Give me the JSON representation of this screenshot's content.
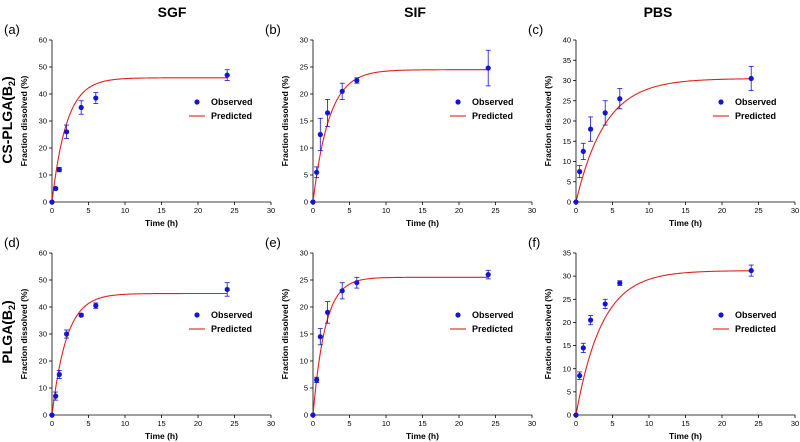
{
  "column_titles": [
    "SGF",
    "SIF",
    "PBS"
  ],
  "row_titles": [
    "CS-PLGA(B",
    "PLGA(B"
  ],
  "row_title_subscript": "2",
  "row_title_close": ")",
  "legend": {
    "observed": "Observed",
    "predicted": "Predicted"
  },
  "colors": {
    "observed": "#1414d2",
    "predicted": "#e02020"
  },
  "chart_data": [
    {
      "type": "scatter",
      "panel_label": "(a)",
      "title": "SGF",
      "row": "CS-PLGA(B2)",
      "xlabel": "Time (h)",
      "ylabel": "Fraction dissolved (%)",
      "xlim": [
        0,
        30
      ],
      "xticks": [
        0,
        5,
        10,
        15,
        20,
        25,
        30
      ],
      "ylim": [
        0,
        60
      ],
      "yticks": [
        0,
        10,
        20,
        30,
        40,
        50,
        60
      ],
      "series": [
        {
          "name": "Observed",
          "x": [
            0,
            0.5,
            1,
            2,
            4,
            6,
            24
          ],
          "y": [
            0,
            5,
            12,
            26,
            35,
            38.5,
            47
          ],
          "err": [
            0,
            0.5,
            0.8,
            2.5,
            2.5,
            2,
            2
          ]
        },
        {
          "name": "Predicted",
          "model": "first-order",
          "plateau": 46,
          "rate": 0.5
        }
      ]
    },
    {
      "type": "scatter",
      "panel_label": "(b)",
      "title": "SIF",
      "row": "CS-PLGA(B2)",
      "xlabel": "Time (h)",
      "ylabel": "Fraction dissolved (%)",
      "xlim": [
        0,
        30
      ],
      "xticks": [
        0,
        5,
        10,
        15,
        20,
        25,
        30
      ],
      "ylim": [
        0,
        30
      ],
      "yticks": [
        0,
        5,
        10,
        15,
        20,
        25,
        30
      ],
      "series": [
        {
          "name": "Observed",
          "x": [
            0,
            0.5,
            1,
            2,
            4,
            6,
            24
          ],
          "y": [
            0,
            5.5,
            12.5,
            16.5,
            20.5,
            22.5,
            24.8
          ],
          "err": [
            0,
            1,
            3,
            2.5,
            1.5,
            0.5,
            3.3
          ]
        },
        {
          "name": "Predicted",
          "model": "first-order",
          "plateau": 24.5,
          "rate": 0.45
        }
      ]
    },
    {
      "type": "scatter",
      "panel_label": "(c)",
      "title": "PBS",
      "row": "CS-PLGA(B2)",
      "xlabel": "Time (h)",
      "ylabel": "Fraction dissolved (%)",
      "xlim": [
        0,
        30
      ],
      "xticks": [
        0,
        5,
        10,
        15,
        20,
        25,
        30
      ],
      "ylim": [
        0,
        40
      ],
      "yticks": [
        0,
        5,
        10,
        15,
        20,
        25,
        30,
        35,
        40
      ],
      "series": [
        {
          "name": "Observed",
          "x": [
            0,
            0.5,
            1,
            2,
            4,
            6,
            24
          ],
          "y": [
            0,
            7.5,
            12.5,
            18,
            22,
            25.5,
            30.5
          ],
          "err": [
            0,
            1.5,
            2,
            3,
            3,
            2.5,
            3
          ]
        },
        {
          "name": "Predicted",
          "model": "first-order",
          "plateau": 30.5,
          "rate": 0.25
        }
      ]
    },
    {
      "type": "scatter",
      "panel_label": "(d)",
      "title": "SGF",
      "row": "PLGA(B2)",
      "xlabel": "Time (h)",
      "ylabel": "Fraction dissolved (%)",
      "xlim": [
        0,
        30
      ],
      "xticks": [
        0,
        5,
        10,
        15,
        20,
        25,
        30
      ],
      "ylim": [
        0,
        60
      ],
      "yticks": [
        0,
        10,
        20,
        30,
        40,
        50,
        60
      ],
      "series": [
        {
          "name": "Observed",
          "x": [
            0,
            0.5,
            1,
            2,
            4,
            6,
            24
          ],
          "y": [
            0,
            7,
            15,
            30,
            37,
            40.5,
            46.5
          ],
          "err": [
            0,
            1.5,
            1.5,
            1.5,
            0.5,
            1,
            2.5
          ]
        },
        {
          "name": "Predicted",
          "model": "first-order",
          "plateau": 45,
          "rate": 0.5
        }
      ]
    },
    {
      "type": "scatter",
      "panel_label": "(e)",
      "title": "SIF",
      "row": "PLGA(B2)",
      "xlabel": "Time (h)",
      "ylabel": "Fraction dissolved (%)",
      "xlim": [
        0,
        30
      ],
      "xticks": [
        0,
        5,
        10,
        15,
        20,
        25,
        30
      ],
      "ylim": [
        0,
        30
      ],
      "yticks": [
        0,
        5,
        10,
        15,
        20,
        25,
        30
      ],
      "series": [
        {
          "name": "Observed",
          "x": [
            0,
            0.5,
            1,
            2,
            4,
            6,
            24
          ],
          "y": [
            0,
            6.5,
            14.5,
            19,
            23,
            24.5,
            26
          ],
          "err": [
            0,
            0.5,
            1.5,
            2,
            1.5,
            1,
            0.8
          ]
        },
        {
          "name": "Predicted",
          "model": "first-order",
          "plateau": 25.5,
          "rate": 0.6
        }
      ]
    },
    {
      "type": "scatter",
      "panel_label": "(f)",
      "title": "PBS",
      "row": "PLGA(B2)",
      "xlabel": "Time (h)",
      "ylabel": "Fraction dissolved (%)",
      "xlim": [
        0,
        30
      ],
      "xticks": [
        0,
        5,
        10,
        15,
        20,
        25,
        30
      ],
      "ylim": [
        0,
        35
      ],
      "yticks": [
        0,
        5,
        10,
        15,
        20,
        25,
        30,
        35
      ],
      "series": [
        {
          "name": "Observed",
          "x": [
            0,
            0.5,
            1,
            2,
            4,
            6,
            24
          ],
          "y": [
            0,
            8.5,
            14.5,
            20.5,
            24,
            28.5,
            31.2
          ],
          "err": [
            0,
            0.8,
            1,
            1,
            1,
            0.5,
            1.2
          ]
        },
        {
          "name": "Predicted",
          "model": "first-order",
          "plateau": 31.2,
          "rate": 0.28
        }
      ]
    }
  ]
}
